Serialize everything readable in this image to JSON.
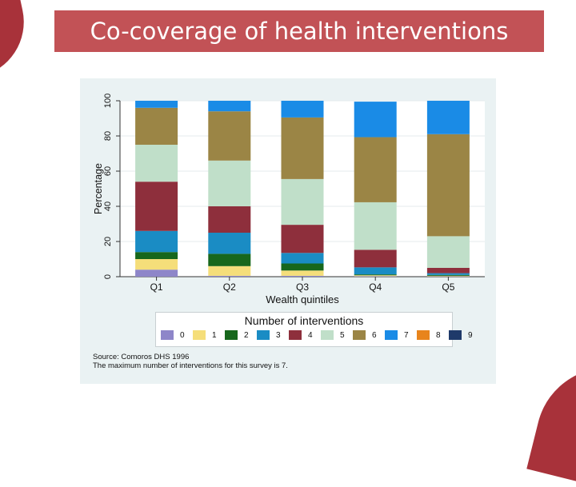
{
  "slide": {
    "title": "Co-coverage of health interventions"
  },
  "chart_data": {
    "type": "bar",
    "stacked": true,
    "categories": [
      "Q1",
      "Q2",
      "Q3",
      "Q4",
      "Q5"
    ],
    "xlabel": "Wealth quintiles",
    "ylabel": "Percentage",
    "ylim": [
      0,
      100
    ],
    "yticks": [
      0,
      20,
      40,
      60,
      80,
      100
    ],
    "grid": true,
    "series": [
      {
        "name": "0",
        "color": "#8e86c9",
        "values": [
          4,
          0.5,
          0.5,
          0.3,
          0.2
        ]
      },
      {
        "name": "1",
        "color": "#f5de7a",
        "values": [
          6,
          5.5,
          3,
          0.5,
          0.3
        ]
      },
      {
        "name": "2",
        "color": "#17671c",
        "values": [
          4,
          7,
          4,
          0.5,
          0.5
        ]
      },
      {
        "name": "3",
        "color": "#1a8cc4",
        "values": [
          12,
          12,
          6,
          4,
          1
        ]
      },
      {
        "name": "4",
        "color": "#8e2f3c",
        "values": [
          28,
          15,
          16,
          10,
          3
        ]
      },
      {
        "name": "5",
        "color": "#c0dfc9",
        "values": [
          21,
          26,
          26,
          27,
          18
        ]
      },
      {
        "name": "6",
        "color": "#9b8545",
        "values": [
          21,
          28,
          35,
          37,
          58
        ]
      },
      {
        "name": "7",
        "color": "#1a8be6",
        "values": [
          4,
          6,
          9.5,
          20.2,
          19
        ]
      },
      {
        "name": "8",
        "color": "#e8841c",
        "values": [
          0,
          0,
          0,
          0,
          0
        ]
      },
      {
        "name": "9",
        "color": "#1f3a6a",
        "values": [
          0,
          0,
          0,
          0,
          0
        ]
      }
    ],
    "legend_title": "Number of interventions",
    "legend_position": "bottom",
    "notes": [
      "Source: Comoros DHS 1996",
      "The maximum number of interventions for this survey is 7."
    ]
  }
}
